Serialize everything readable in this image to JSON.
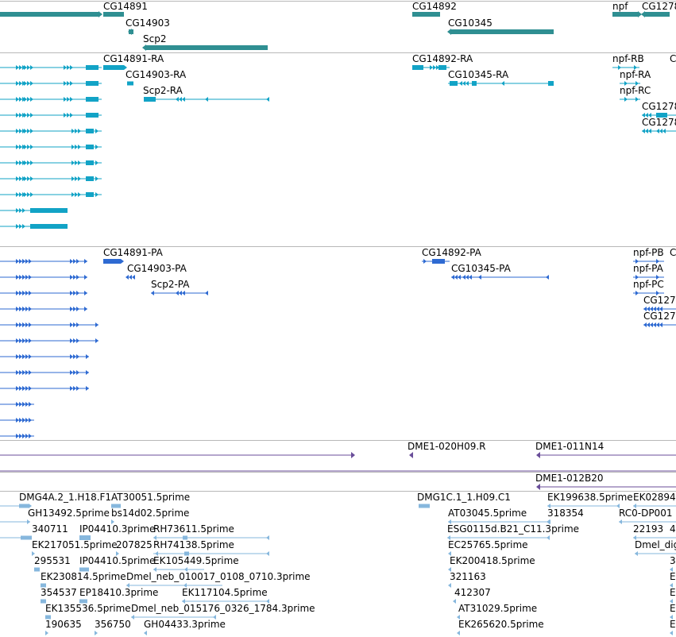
{
  "colors": {
    "gene": "#2f8f92",
    "transcript": "#12a3c6",
    "protein": "#2e6ad2",
    "clone": "#6a4e9a",
    "est": "#86b7dd",
    "separator": "#b8b8b8"
  },
  "tracks": {
    "genes": {
      "features": [
        {
          "label": "CG14891"
        },
        {
          "label": "CG14903"
        },
        {
          "label": "Scp2"
        },
        {
          "label": "CG14892"
        },
        {
          "label": "CG10345"
        },
        {
          "label": "npf"
        },
        {
          "label": "CG1278"
        }
      ]
    },
    "transcripts": {
      "features": [
        {
          "label": "CG14891-RA"
        },
        {
          "label": "CG14903-RA"
        },
        {
          "label": "Scp2-RA"
        },
        {
          "label": "CG14892-RA"
        },
        {
          "label": "CG10345-RA"
        },
        {
          "label": "npf-RB"
        },
        {
          "label": "npf-RA"
        },
        {
          "label": "npf-RC"
        },
        {
          "label": "CG1278"
        },
        {
          "label": "CG1278"
        },
        {
          "label": "C"
        }
      ]
    },
    "proteins": {
      "features": [
        {
          "label": "CG14891-PA"
        },
        {
          "label": "CG14903-PA"
        },
        {
          "label": "Scp2-PA"
        },
        {
          "label": "CG14892-PA"
        },
        {
          "label": "CG10345-PA"
        },
        {
          "label": "npf-PB"
        },
        {
          "label": "npf-PA"
        },
        {
          "label": "npf-PC"
        },
        {
          "label": "CG127"
        },
        {
          "label": "CG127"
        },
        {
          "label": "C"
        }
      ]
    },
    "clones": {
      "features": [
        {
          "label": "DME1-020H09.R"
        },
        {
          "label": "DME1-011N14"
        },
        {
          "label": "DME1-012B20"
        }
      ]
    },
    "ests": {
      "features": [
        {
          "label": "DMG4A.2_1.H18.F1"
        },
        {
          "label": "AT30051.5prime"
        },
        {
          "label": "GH13492.5prime"
        },
        {
          "label": "bs14d02.5prime"
        },
        {
          "label": "340711"
        },
        {
          "label": "IP04410.3prime"
        },
        {
          "label": "RH73611.5prime"
        },
        {
          "label": "EK217051.5prime"
        },
        {
          "label": "207825"
        },
        {
          "label": "RH74138.5prime"
        },
        {
          "label": "295531"
        },
        {
          "label": "IP04410.5prime"
        },
        {
          "label": "EK105449.5prime"
        },
        {
          "label": "EK230814.5prime"
        },
        {
          "label": "Dmel_neb_010017_0108_0710.3prime"
        },
        {
          "label": "354537"
        },
        {
          "label": "EP18410.3prime"
        },
        {
          "label": "EK117104.5prime"
        },
        {
          "label": "EK135536.5prime"
        },
        {
          "label": "Dmel_neb_015176_0326_1784.3prime"
        },
        {
          "label": "190635"
        },
        {
          "label": "356750"
        },
        {
          "label": "GH04433.3prime"
        },
        {
          "label": "DMG1C.1_1.H09.C1"
        },
        {
          "label": "AT03045.5prime"
        },
        {
          "label": "ESG0115d.B21_C11.3prime"
        },
        {
          "label": "EC25765.5prime"
        },
        {
          "label": "EK200418.5prime"
        },
        {
          "label": "321163"
        },
        {
          "label": "412307"
        },
        {
          "label": "AT31029.5prime"
        },
        {
          "label": "EK265620.5prime"
        },
        {
          "label": "EK199638.5prime"
        },
        {
          "label": "318354"
        },
        {
          "label": "EK02894"
        },
        {
          "label": "RC0-DP001"
        },
        {
          "label": "22193"
        },
        {
          "label": "4"
        },
        {
          "label": "Dmel_dig"
        },
        {
          "label": "3"
        },
        {
          "label": "E"
        },
        {
          "label": "E"
        },
        {
          "label": "E"
        },
        {
          "label": "E"
        }
      ]
    }
  }
}
